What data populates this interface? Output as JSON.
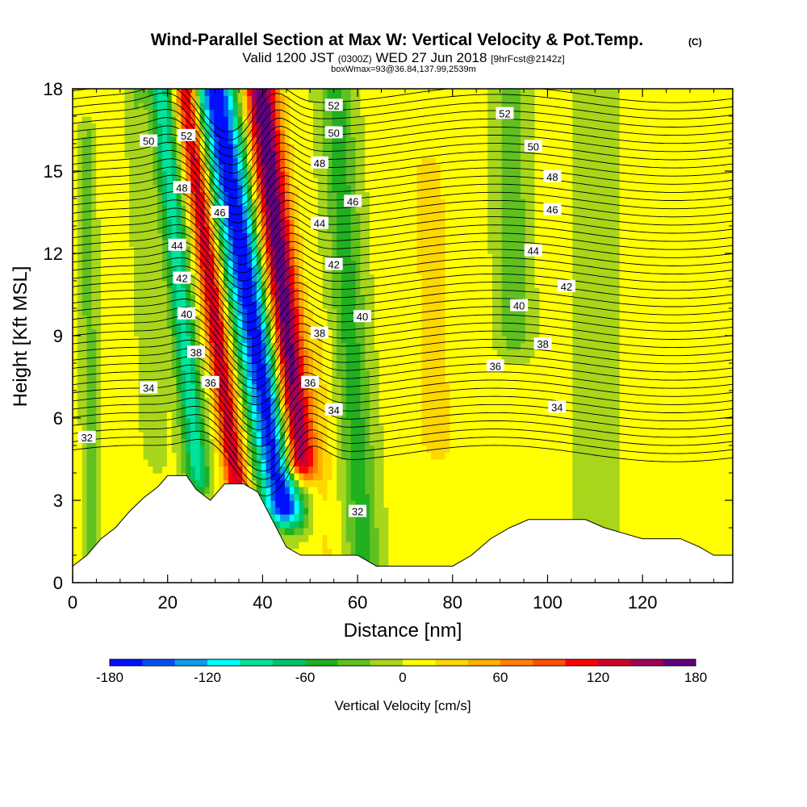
{
  "header": {
    "title": "Wind-Parallel Section at Max W: Vertical Velocity & Pot.Temp.",
    "copyright": "(C)",
    "valid_prefix": "Valid 1200 JST",
    "valid_utc": "(0300Z)",
    "valid_date": "WED 27 Jun 2018",
    "forecast": "[9hrFcst@2142z]",
    "box_info": "boxWmax=93@36.84,137.99,2539m"
  },
  "chart_data": {
    "type": "heatmap",
    "title": "Wind-Parallel Section at Max W: Vertical Velocity & Pot.Temp.",
    "xlabel": "Distance [nm]",
    "ylabel": "Height [Kft MSL]",
    "xlim": [
      0,
      139
    ],
    "ylim": [
      0,
      18
    ],
    "x_ticks": [
      "0",
      "20",
      "40",
      "60",
      "80",
      "100",
      "120"
    ],
    "y_ticks": [
      "0",
      "3",
      "6",
      "9",
      "12",
      "15",
      "18"
    ],
    "colorbar": {
      "label": "Vertical Velocity [cm/s]",
      "ticks": [
        "-180",
        "-120",
        "-60",
        "0",
        "60",
        "120",
        "180"
      ],
      "min": -180,
      "max": 180,
      "step": 20,
      "colors": [
        "#0010ff",
        "#0050f0",
        "#0a9ee8",
        "#00ffff",
        "#00e39a",
        "#00c46a",
        "#20b020",
        "#60c020",
        "#a8d61a",
        "#ffff00",
        "#ffd700",
        "#ffb000",
        "#ff8000",
        "#ff5000",
        "#ff0000",
        "#d0002a",
        "#a00058",
        "#600080"
      ]
    },
    "updrafts_downdrafts": [
      {
        "x": 38.5,
        "y0": 2.8,
        "y1": 18,
        "lean": 0.95,
        "width": 4.2,
        "amp": -185
      },
      {
        "x": 45.0,
        "y0": 4.5,
        "y1": 18,
        "lean": 0.6,
        "width": 3.4,
        "amp": 178
      },
      {
        "x": 30.5,
        "y0": 3.4,
        "y1": 18,
        "lean": 0.75,
        "width": 2.4,
        "amp": 130
      },
      {
        "x": 23.5,
        "y0": 4.0,
        "y1": 18,
        "lean": 0.55,
        "width": 2.6,
        "amp": -95
      },
      {
        "x": 58.5,
        "y0": 1.0,
        "y1": 18,
        "lean": 0.35,
        "width": 3.6,
        "amp": -55
      },
      {
        "x": 93.0,
        "y0": 9.0,
        "y1": 18,
        "lean": 0.08,
        "width": 3.6,
        "amp": -38
      },
      {
        "x": 76.0,
        "y0": 5.0,
        "y1": 15,
        "lean": 0.15,
        "width": 4.5,
        "amp": 20
      },
      {
        "x": 52.0,
        "y0": 0.8,
        "y1": 9,
        "lean": 0.2,
        "width": 2.8,
        "amp": 16
      },
      {
        "x": 3.5,
        "y0": 0.6,
        "y1": 16,
        "lean": 0.05,
        "width": 1.6,
        "amp": -38
      },
      {
        "x": 16.0,
        "y0": 5.0,
        "y1": 18,
        "lean": 0.3,
        "width": 2.2,
        "amp": -25
      },
      {
        "x": 110.0,
        "y0": 2.0,
        "y1": 18,
        "lean": 0.0,
        "width": 6.0,
        "amp": -12
      }
    ],
    "terrain": {
      "x": [
        0,
        3,
        6,
        9,
        12,
        15,
        18,
        20,
        24,
        26,
        29,
        32,
        36,
        39,
        42,
        45,
        48,
        52,
        56,
        60,
        64,
        68,
        72,
        76,
        80,
        84,
        88,
        92,
        96,
        100,
        104,
        108,
        112,
        116,
        120,
        124,
        128,
        132,
        135,
        139
      ],
      "height": [
        0.6,
        1.0,
        1.6,
        2.0,
        2.6,
        3.1,
        3.5,
        3.9,
        3.9,
        3.4,
        3.0,
        3.6,
        3.6,
        3.3,
        2.3,
        1.3,
        1.0,
        1.0,
        1.0,
        1.0,
        0.6,
        0.6,
        0.6,
        0.6,
        0.6,
        1.0,
        1.6,
        2.0,
        2.3,
        2.3,
        2.3,
        2.3,
        2.0,
        1.8,
        1.6,
        1.6,
        1.6,
        1.3,
        1.0,
        1.0
      ]
    },
    "theta_contours": {
      "levels": [
        31,
        31.5,
        32,
        32.5,
        33,
        33.5,
        34,
        34.5,
        35,
        35.5,
        36,
        36.5,
        37,
        37.5,
        38,
        38.5,
        39,
        39.5,
        40,
        40.5,
        41,
        41.5,
        42,
        42.5,
        43,
        43.5,
        44,
        44.5,
        45,
        45.5,
        46,
        46.5,
        47,
        47.5,
        48,
        48.5,
        49,
        49.5,
        50,
        50.5,
        51,
        51.5,
        52,
        52.5,
        53
      ],
      "labels": [
        {
          "text": "32",
          "x": 3,
          "y": 5.3
        },
        {
          "text": "32",
          "x": 60,
          "y": 2.6
        },
        {
          "text": "34",
          "x": 16,
          "y": 7.1
        },
        {
          "text": "34",
          "x": 55,
          "y": 6.3
        },
        {
          "text": "34",
          "x": 102,
          "y": 6.4
        },
        {
          "text": "36",
          "x": 29,
          "y": 7.3
        },
        {
          "text": "36",
          "x": 50,
          "y": 7.3
        },
        {
          "text": "36",
          "x": 89,
          "y": 7.9
        },
        {
          "text": "38",
          "x": 26,
          "y": 8.4
        },
        {
          "text": "38",
          "x": 52,
          "y": 9.1
        },
        {
          "text": "38",
          "x": 99,
          "y": 8.7
        },
        {
          "text": "40",
          "x": 24,
          "y": 9.8
        },
        {
          "text": "40",
          "x": 61,
          "y": 9.7
        },
        {
          "text": "40",
          "x": 94,
          "y": 10.1
        },
        {
          "text": "42",
          "x": 23,
          "y": 11.1
        },
        {
          "text": "42",
          "x": 55,
          "y": 11.6
        },
        {
          "text": "42",
          "x": 104,
          "y": 10.8
        },
        {
          "text": "44",
          "x": 22,
          "y": 12.3
        },
        {
          "text": "44",
          "x": 52,
          "y": 13.1
        },
        {
          "text": "44",
          "x": 97,
          "y": 12.1
        },
        {
          "text": "46",
          "x": 31,
          "y": 13.5
        },
        {
          "text": "46",
          "x": 59,
          "y": 13.9
        },
        {
          "text": "46",
          "x": 101,
          "y": 13.6
        },
        {
          "text": "48",
          "x": 23,
          "y": 14.4
        },
        {
          "text": "48",
          "x": 52,
          "y": 15.3
        },
        {
          "text": "48",
          "x": 101,
          "y": 14.8
        },
        {
          "text": "50",
          "x": 16,
          "y": 16.1
        },
        {
          "text": "50",
          "x": 55,
          "y": 16.4
        },
        {
          "text": "50",
          "x": 97,
          "y": 15.9
        },
        {
          "text": "52",
          "x": 24,
          "y": 16.3
        },
        {
          "text": "52",
          "x": 55,
          "y": 17.4
        },
        {
          "text": "52",
          "x": 91,
          "y": 17.1
        }
      ]
    },
    "grid": false,
    "legend": "colorbar-bottom"
  }
}
